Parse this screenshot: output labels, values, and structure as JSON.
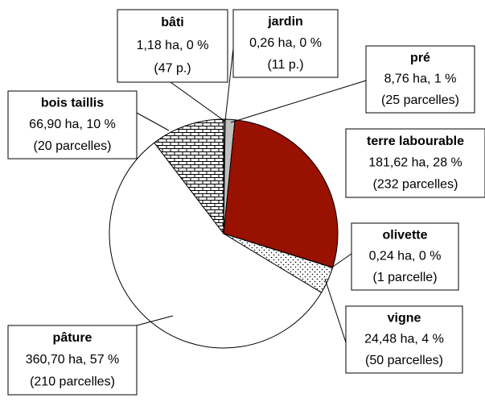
{
  "chart_data": {
    "type": "pie",
    "categories": [
      "bâti",
      "jardin",
      "pré",
      "terre labourable",
      "olivette",
      "vigne",
      "pâture",
      "bois taillis"
    ],
    "values": [
      1.18,
      0.26,
      8.76,
      181.62,
      0.24,
      24.48,
      360.7,
      66.9
    ],
    "value_labels": [
      "1,18 ha, 0 %",
      "0,26 ha, 0 %",
      "8,76 ha, 1 %",
      "181,62 ha, 28 %",
      "0,24 ha, 0 %",
      "24,48 ha, 4 %",
      "360,70 ha, 57 %",
      "66,90 ha, 10 %"
    ],
    "parcels": [
      "(47 p.)",
      "(11 p.)",
      "(25 parcelles)",
      "(232 parcelles)",
      "(1 parcelle)",
      "(50 parcelles)",
      "(210 parcelles)",
      "(20 parcelles)"
    ],
    "colors": [
      "#ffffff",
      "#ffffff",
      "#c0c0c0",
      "#991100",
      "#ffffff",
      "#ffffff",
      "#ffffff",
      "#ffffff"
    ],
    "patterns": [
      "none",
      "none",
      "none",
      "none",
      "dots",
      "dots",
      "none",
      "brick"
    ]
  }
}
